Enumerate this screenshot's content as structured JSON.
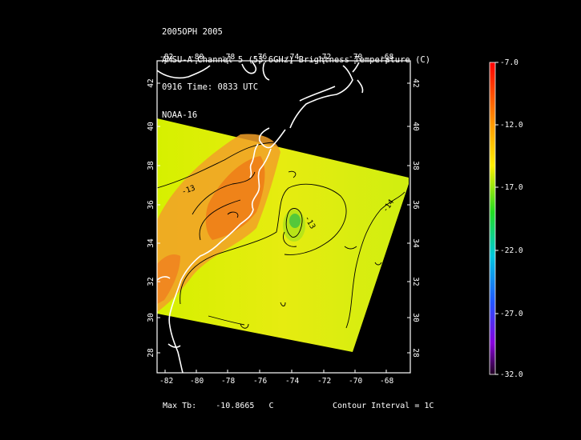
{
  "header": {
    "line1": "2005OPH 2005",
    "line2": "AMSU-A Channel 5 (53.6GHz) Brightness Temperature (C)",
    "line3": "0916 Time: 0833 UTC",
    "line4": "NOAA-16"
  },
  "map": {
    "lon_range": [
      -83,
      -67
    ],
    "lat_range": [
      27,
      43
    ],
    "lon_ticks": [
      "-82",
      "-80",
      "-78",
      "-76",
      "-74",
      "-72",
      "-70",
      "-68"
    ],
    "lat_ticks": [
      "42",
      "40",
      "38",
      "36",
      "34",
      "32",
      "30",
      "28"
    ],
    "contour_labels": [
      "-13",
      "-13",
      "-14"
    ]
  },
  "colorbar": {
    "labels": [
      "-7.0",
      "-12.0",
      "-17.0",
      "-22.0",
      "-27.0",
      "-32.0"
    ],
    "max": -7.0,
    "min": -32.0
  },
  "footer": {
    "max_tb_label": "Max Tb:",
    "max_tb_value": "-10.8665",
    "max_tb_unit": "C",
    "contour_interval": "Contour Interval = 1C"
  }
}
